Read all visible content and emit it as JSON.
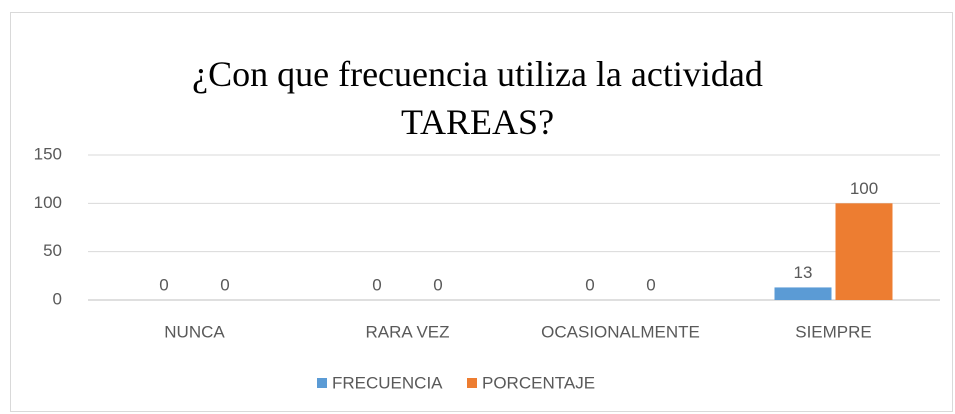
{
  "chart_data": {
    "type": "bar",
    "title": "¿Con que frecuencia utiliza la actividad TAREAS?",
    "categories": [
      "NUNCA",
      "RARA VEZ",
      "OCASIONALMENTE",
      "SIEMPRE"
    ],
    "series": [
      {
        "name": "FRECUENCIA",
        "color": "#5b9bd5",
        "values": [
          0,
          0,
          0,
          13
        ]
      },
      {
        "name": "PORCENTAJE",
        "color": "#ed7d31",
        "values": [
          0,
          0,
          0,
          100
        ]
      }
    ],
    "ylim": [
      0,
      150
    ],
    "yticks": [
      0,
      50,
      100,
      150
    ],
    "grid": true,
    "legend": "bottom"
  }
}
